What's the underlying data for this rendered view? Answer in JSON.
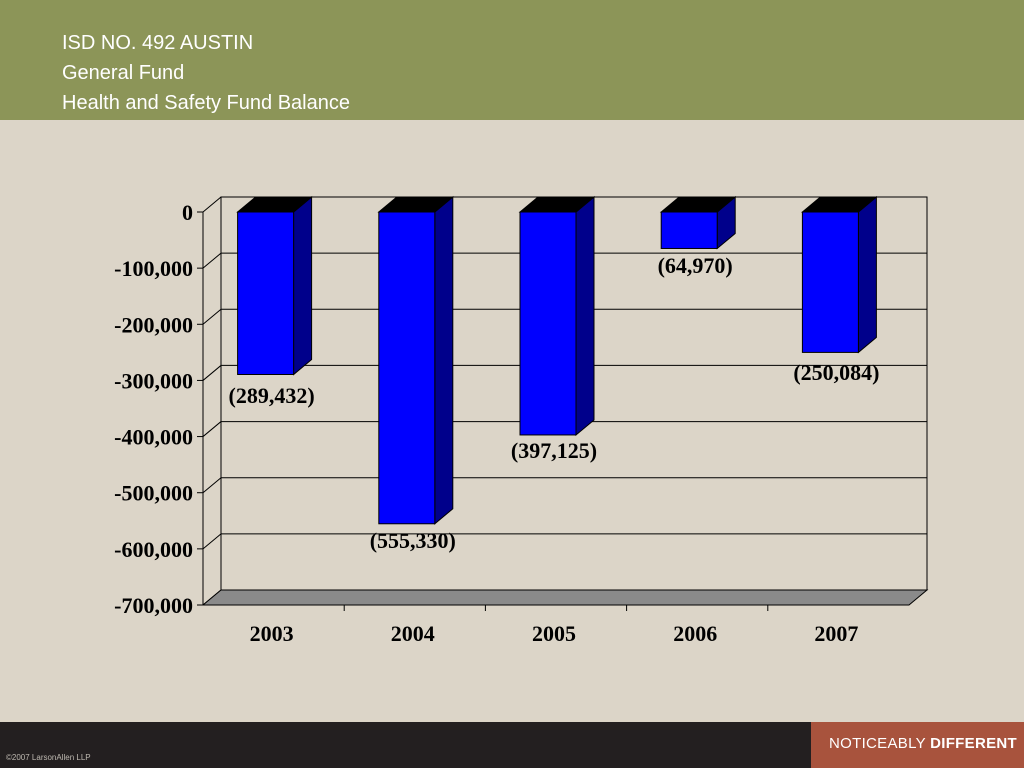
{
  "header": {
    "title_line1": "ISD NO. 492 AUSTIN",
    "title_line2": "General Fund",
    "title_line3": "Health and Safety Fund Balance"
  },
  "chart_data": {
    "type": "bar",
    "categories": [
      "2003",
      "2004",
      "2005",
      "2006",
      "2007"
    ],
    "values": [
      -289432,
      -555330,
      -397125,
      -64970,
      -250084
    ],
    "data_labels": [
      "(289,432)",
      "(555,330)",
      "(397,125)",
      "(64,970)",
      "(250,084)"
    ],
    "ylim": [
      -700000,
      0
    ],
    "yticks": [
      0,
      -100000,
      -200000,
      -300000,
      -400000,
      -500000,
      -600000,
      -700000
    ],
    "ytick_labels": [
      "0",
      "-100,000",
      "-200,000",
      "-300,000",
      "-400,000",
      "-500,000",
      "-600,000",
      "-700,000"
    ],
    "grid": true,
    "style": "3d",
    "bar_color": "#0000ff",
    "bar_side_color": "#00008b",
    "bar_top_color": "#000000"
  },
  "footer": {
    "copyright": "©2007 LarsonAllen LLP",
    "tagline_regular": "NOTICEABLY ",
    "tagline_bold": "DIFFERENT"
  }
}
